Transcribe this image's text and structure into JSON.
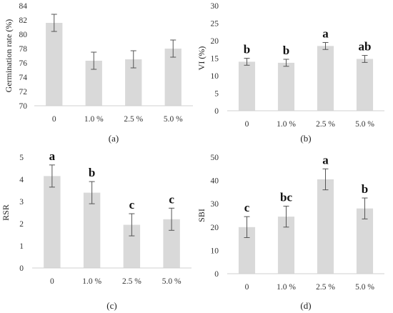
{
  "chart_data": [
    {
      "type": "bar",
      "panel_label": "(a)",
      "categories": [
        "0",
        "1.0 %",
        "2.5 %",
        "5.0 %"
      ],
      "values": [
        81.6,
        76.3,
        76.5,
        78.0
      ],
      "errors": [
        1.2,
        1.2,
        1.2,
        1.2
      ],
      "significance": [
        "",
        "",
        "",
        ""
      ],
      "ylabel": "Germination rate (%)",
      "xlabel": "",
      "ylim": [
        70,
        84
      ],
      "yticks": [
        70,
        72,
        74,
        76,
        78,
        80,
        82,
        84
      ],
      "grid": false
    },
    {
      "type": "bar",
      "panel_label": "(b)",
      "categories": [
        "0",
        "1.0 %",
        "2.5 %",
        "5.0 %"
      ],
      "values": [
        14.0,
        13.7,
        18.5,
        14.8
      ],
      "errors": [
        1.0,
        1.0,
        1.0,
        1.0
      ],
      "significance": [
        "b",
        "b",
        "a",
        "ab"
      ],
      "ylabel": "VI (%)",
      "xlabel": "",
      "ylim": [
        0,
        30
      ],
      "yticks": [
        0,
        5,
        10,
        15,
        20,
        25,
        30
      ],
      "grid": false
    },
    {
      "type": "bar",
      "panel_label": "(c)",
      "categories": [
        "0",
        "1.0 %",
        "2.5 %",
        "5.0 %"
      ],
      "values": [
        4.15,
        3.4,
        1.95,
        2.2
      ],
      "errors": [
        0.5,
        0.5,
        0.5,
        0.5
      ],
      "significance": [
        "a",
        "b",
        "c",
        "c"
      ],
      "ylabel": "RSR",
      "xlabel": "",
      "ylim": [
        0,
        5
      ],
      "yticks": [
        0,
        1,
        2,
        3,
        4,
        5
      ],
      "grid": false
    },
    {
      "type": "bar",
      "panel_label": "(d)",
      "categories": [
        "0",
        "1.0 %",
        "2.5 %",
        "5.0 %"
      ],
      "values": [
        20.0,
        24.5,
        40.5,
        28.0
      ],
      "errors": [
        4.5,
        4.5,
        4.5,
        4.5
      ],
      "significance": [
        "c",
        "bc",
        "a",
        "b"
      ],
      "ylabel": "SBI",
      "xlabel": "",
      "ylim": [
        0,
        50
      ],
      "yticks": [
        0,
        10,
        20,
        30,
        40,
        50
      ],
      "grid": false
    }
  ],
  "colors": {
    "bar": "#d9d9d9",
    "axis": "#d0d0d0",
    "error": "#555555",
    "text": "#222222"
  }
}
